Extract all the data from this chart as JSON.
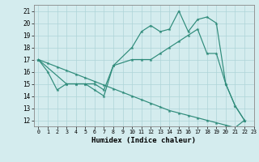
{
  "line1_x": [
    0,
    1,
    2,
    3,
    4,
    5,
    6,
    7,
    8,
    10,
    11,
    12,
    13,
    14,
    15,
    16,
    17,
    18,
    19,
    20,
    21,
    22
  ],
  "line1_y": [
    17.0,
    16.0,
    14.5,
    15.0,
    15.0,
    15.0,
    14.5,
    14.0,
    16.5,
    18.0,
    19.3,
    19.8,
    19.3,
    19.5,
    21.0,
    19.3,
    20.3,
    20.5,
    20.0,
    15.0,
    13.2,
    12.0
  ],
  "line2_x": [
    0,
    3,
    4,
    5,
    6,
    7,
    8,
    10,
    11,
    12,
    13,
    14,
    15,
    16,
    17,
    18,
    19,
    20,
    21,
    22
  ],
  "line2_y": [
    17.0,
    15.0,
    15.0,
    15.0,
    15.0,
    14.5,
    16.5,
    17.0,
    17.0,
    17.0,
    17.5,
    18.0,
    18.5,
    19.0,
    19.5,
    17.5,
    17.5,
    15.0,
    13.2,
    12.0
  ],
  "line3_x": [
    0,
    1,
    2,
    3,
    4,
    5,
    6,
    7,
    8,
    9,
    10,
    11,
    12,
    13,
    14,
    15,
    16,
    17,
    18,
    19,
    20,
    21,
    22
  ],
  "line3_y": [
    17.0,
    16.7,
    16.4,
    16.1,
    15.8,
    15.5,
    15.2,
    14.9,
    14.6,
    14.3,
    14.0,
    13.7,
    13.4,
    13.1,
    12.8,
    12.6,
    12.4,
    12.2,
    12.0,
    11.8,
    11.6,
    11.4,
    12.0
  ],
  "color": "#2e8b7a",
  "bg_color": "#d4ecee",
  "grid_color": "#aed4d8",
  "xlabel": "Humidex (Indice chaleur)",
  "xlim": [
    -0.5,
    23.0
  ],
  "ylim": [
    11.5,
    21.5
  ],
  "yticks": [
    12,
    13,
    14,
    15,
    16,
    17,
    18,
    19,
    20,
    21
  ],
  "xticks": [
    0,
    1,
    2,
    3,
    4,
    5,
    6,
    7,
    8,
    9,
    10,
    11,
    12,
    13,
    14,
    15,
    16,
    17,
    18,
    19,
    20,
    21,
    22,
    23
  ]
}
